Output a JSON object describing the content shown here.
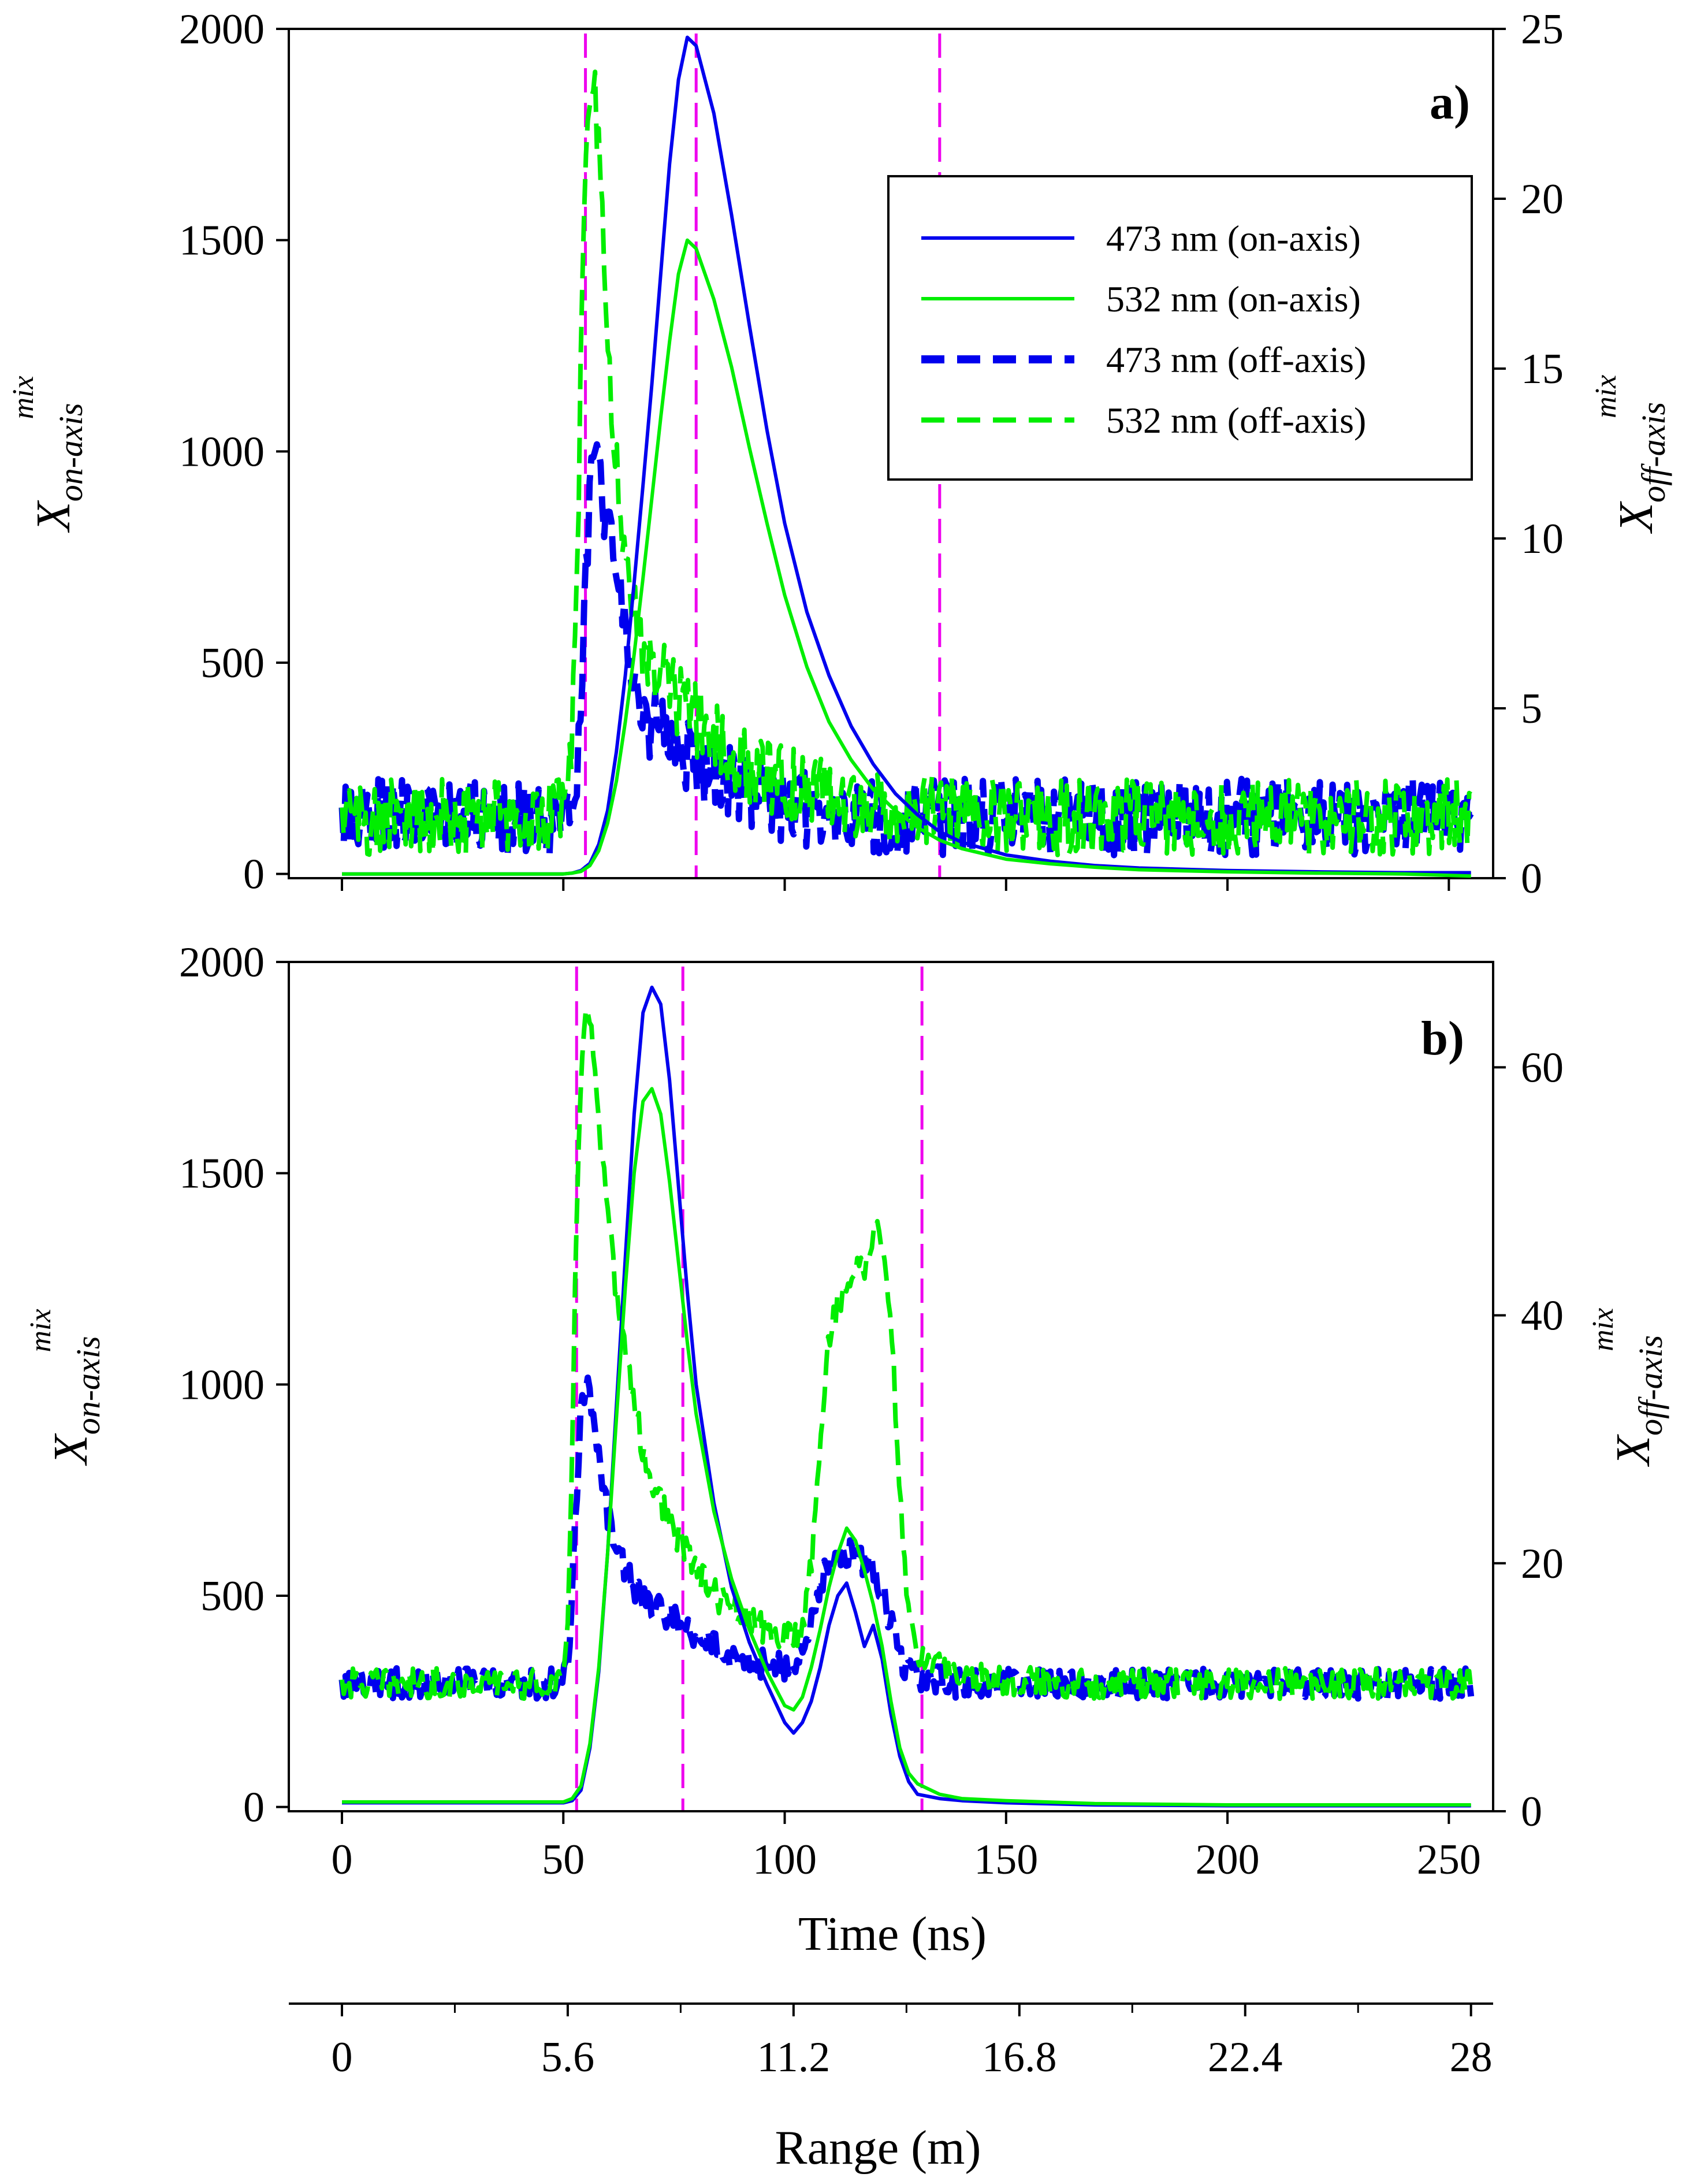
{
  "chart_data": [
    {
      "panel": "a)",
      "type": "line",
      "ylabel_left": {
        "base": "X",
        "sub": "on-axis",
        "sup": "mix"
      },
      "ylabel_right": {
        "base": "X",
        "sub": "off-axis",
        "sup": "mix"
      },
      "xlim": [
        -12,
        260
      ],
      "ylim_left": [
        -10,
        2000
      ],
      "ylim_right": [
        0,
        25
      ],
      "left_ticks": [
        "0",
        "500",
        "1000",
        "1500",
        "2000"
      ],
      "right_ticks": [
        "0",
        "5",
        "10",
        "15",
        "20",
        "25"
      ],
      "vlines": [
        55,
        80,
        135
      ],
      "legend": {
        "placement": "top-right",
        "entries": [
          "473 nm (on-axis)",
          "532 nm (on-axis)",
          "473 nm (off-axis)",
          "532 nm (off-axis)"
        ]
      },
      "series": [
        {
          "name": "473 nm (on-axis)",
          "axis": "left",
          "color": "#0000ee",
          "style": "solid",
          "x": [
            0,
            50,
            52,
            54,
            56,
            58,
            60,
            62,
            64,
            66,
            68,
            70,
            72,
            74,
            76,
            78,
            80,
            84,
            88,
            92,
            96,
            100,
            105,
            110,
            115,
            120,
            125,
            130,
            135,
            140,
            150,
            160,
            170,
            180,
            200,
            220,
            240,
            255
          ],
          "y": [
            0,
            0,
            2,
            8,
            25,
            70,
            150,
            290,
            470,
            690,
            920,
            1160,
            1420,
            1680,
            1880,
            1980,
            1960,
            1800,
            1560,
            1300,
            1050,
            830,
            620,
            470,
            350,
            260,
            190,
            140,
            100,
            75,
            45,
            30,
            20,
            14,
            8,
            5,
            3,
            3
          ]
        },
        {
          "name": "532 nm (on-axis)",
          "axis": "left",
          "color": "#00ee00",
          "style": "solid",
          "x": [
            0,
            50,
            52,
            54,
            56,
            58,
            60,
            62,
            64,
            66,
            68,
            70,
            72,
            74,
            76,
            78,
            80,
            84,
            88,
            92,
            96,
            100,
            105,
            110,
            115,
            120,
            125,
            130,
            135,
            140,
            150,
            160,
            170,
            180,
            200,
            220,
            240,
            255
          ],
          "y": [
            0,
            0,
            2,
            6,
            20,
            55,
            120,
            220,
            360,
            520,
            700,
            890,
            1080,
            1260,
            1420,
            1500,
            1480,
            1360,
            1200,
            1010,
            830,
            660,
            490,
            360,
            270,
            200,
            150,
            110,
            80,
            60,
            35,
            24,
            16,
            10,
            5,
            2,
            0,
            -5
          ]
        },
        {
          "name": "473 nm (off-axis)",
          "axis": "right",
          "color": "#0000ee",
          "style": "dashed",
          "x": [
            0,
            50,
            52,
            54,
            55,
            56,
            57,
            58,
            60,
            62,
            64,
            66,
            68,
            70,
            75,
            80,
            85,
            90,
            95,
            100,
            105,
            110,
            115,
            120,
            130,
            140,
            150,
            160,
            170,
            180,
            200,
            220,
            240,
            255
          ],
          "y": [
            1.8,
            1.8,
            2.2,
            4.5,
            8.5,
            11.0,
            12.2,
            12.0,
            10.5,
            8.8,
            7.0,
            6.0,
            5.2,
            4.5,
            4.0,
            3.4,
            3.1,
            2.8,
            2.4,
            2.1,
            2.0,
            1.9,
            1.9,
            1.8,
            1.8,
            1.8,
            1.8,
            1.8,
            1.8,
            1.8,
            1.8,
            1.8,
            1.8,
            1.8
          ]
        },
        {
          "name": "532 nm (off-axis)",
          "axis": "right",
          "color": "#00ee00",
          "style": "dashed",
          "x": [
            0,
            50,
            52,
            53,
            54,
            55,
            56,
            57,
            58,
            59,
            60,
            62,
            64,
            66,
            68,
            70,
            75,
            80,
            85,
            90,
            95,
            100,
            105,
            110,
            115,
            120,
            130,
            140,
            150,
            160,
            170,
            180,
            200,
            220,
            240,
            255
          ],
          "y": [
            1.8,
            1.8,
            4.0,
            9.0,
            15.0,
            20.0,
            23.0,
            23.2,
            21.5,
            19.0,
            16.0,
            12.0,
            9.5,
            8.0,
            7.0,
            6.3,
            5.4,
            4.6,
            4.0,
            3.5,
            3.1,
            2.8,
            2.6,
            2.4,
            2.3,
            2.2,
            2.0,
            1.9,
            1.8,
            1.8,
            1.8,
            1.8,
            1.8,
            1.8,
            1.8,
            1.8
          ]
        }
      ]
    },
    {
      "panel": "b)",
      "type": "line",
      "ylabel_left": {
        "base": "X",
        "sub": "on-axis",
        "sup": "mix"
      },
      "ylabel_right": {
        "base": "X",
        "sub": "off-axis",
        "sup": "mix"
      },
      "xlabel": "Time (ns)",
      "xlim": [
        -12,
        260
      ],
      "ylim_left": [
        -10,
        2000
      ],
      "ylim_right": [
        0,
        68.5
      ],
      "x_ticks": [
        "0",
        "50",
        "100",
        "150",
        "200",
        "250"
      ],
      "left_ticks": [
        "0",
        "500",
        "1000",
        "1500",
        "2000"
      ],
      "right_ticks": [
        "0",
        "20",
        "40",
        "60"
      ],
      "vlines": [
        53,
        77,
        131
      ],
      "secondary_x_axis": {
        "label": "Range (m)",
        "ticks": [
          "0",
          "5.6",
          "11.2",
          "16.8",
          "22.4",
          "28"
        ],
        "max": 28
      },
      "series": [
        {
          "name": "473 nm (on-axis)",
          "axis": "left",
          "color": "#0000ee",
          "style": "solid",
          "x": [
            0,
            50,
            52,
            54,
            56,
            58,
            60,
            62,
            64,
            66,
            68,
            70,
            72,
            74,
            76,
            78,
            80,
            84,
            88,
            92,
            96,
            100,
            102,
            104,
            106,
            108,
            110,
            112,
            114,
            116,
            118,
            120,
            122,
            124,
            126,
            128,
            130,
            135,
            140,
            150,
            170,
            200,
            255
          ],
          "y": [
            10,
            10,
            15,
            40,
            140,
            320,
            600,
            950,
            1300,
            1640,
            1880,
            1940,
            1900,
            1720,
            1470,
            1220,
            1000,
            720,
            520,
            390,
            290,
            200,
            175,
            200,
            250,
            330,
            430,
            500,
            530,
            460,
            380,
            430,
            350,
            220,
            120,
            60,
            30,
            20,
            15,
            10,
            5,
            3,
            3
          ]
        },
        {
          "name": "532 nm (on-axis)",
          "axis": "left",
          "color": "#00ee00",
          "style": "solid",
          "x": [
            0,
            50,
            52,
            54,
            56,
            58,
            60,
            62,
            64,
            66,
            68,
            70,
            72,
            74,
            76,
            78,
            80,
            84,
            88,
            92,
            96,
            100,
            102,
            104,
            106,
            108,
            110,
            112,
            114,
            116,
            118,
            120,
            122,
            124,
            126,
            128,
            130,
            135,
            140,
            150,
            170,
            200,
            255
          ],
          "y": [
            12,
            12,
            20,
            50,
            150,
            330,
            600,
            920,
            1230,
            1500,
            1670,
            1700,
            1640,
            1480,
            1290,
            1100,
            930,
            700,
            540,
            420,
            320,
            240,
            230,
            260,
            330,
            420,
            520,
            600,
            660,
            630,
            560,
            480,
            380,
            250,
            140,
            80,
            55,
            30,
            20,
            15,
            8,
            5,
            5
          ]
        },
        {
          "name": "473 nm (off-axis)",
          "axis": "right",
          "color": "#0000ee",
          "style": "dashed",
          "x": [
            0,
            50,
            51,
            52,
            53,
            54,
            55,
            56,
            57,
            58,
            59,
            60,
            62,
            64,
            66,
            68,
            70,
            75,
            80,
            85,
            90,
            95,
            100,
            102,
            104,
            106,
            108,
            110,
            112,
            114,
            116,
            118,
            120,
            122,
            124,
            126,
            128,
            130,
            132,
            135,
            140,
            150,
            170,
            200,
            255
          ],
          "y": [
            10.3,
            10.3,
            12.0,
            18.0,
            26.0,
            32.0,
            34.0,
            33.5,
            31.0,
            28.5,
            26.0,
            24.0,
            21.5,
            19.5,
            18.2,
            17.2,
            16.5,
            15.5,
            14.2,
            13.2,
            12.3,
            11.8,
            11.5,
            11.8,
            12.8,
            15.5,
            18.5,
            20.0,
            20.8,
            21.0,
            20.5,
            20.0,
            19.5,
            18.0,
            15.0,
            12.5,
            11.5,
            11.0,
            10.8,
            10.5,
            10.3,
            10.3,
            10.3,
            10.3,
            10.3
          ]
        },
        {
          "name": "532 nm (off-axis)",
          "axis": "right",
          "color": "#00ee00",
          "style": "dashed",
          "x": [
            0,
            50,
            51,
            52,
            53,
            54,
            55,
            56,
            57,
            58,
            60,
            62,
            64,
            66,
            68,
            70,
            75,
            80,
            85,
            90,
            95,
            100,
            102,
            104,
            106,
            108,
            110,
            112,
            114,
            116,
            118,
            120,
            122,
            124,
            126,
            128,
            130,
            132,
            135,
            140,
            150,
            170,
            200,
            255
          ],
          "y": [
            10.3,
            10.3,
            14.0,
            30.0,
            48.0,
            60.0,
            64.5,
            64.0,
            60.0,
            55.0,
            48.0,
            42.0,
            37.0,
            33.0,
            29.0,
            26.5,
            22.5,
            19.5,
            17.2,
            15.8,
            14.8,
            14.0,
            14.0,
            15.0,
            20.0,
            30.0,
            38.0,
            41.0,
            42.5,
            43.5,
            44.0,
            46.5,
            46.5,
            40.0,
            25.0,
            16.0,
            13.0,
            12.0,
            11.5,
            11.0,
            10.5,
            10.3,
            10.3,
            10.3
          ]
        }
      ]
    }
  ]
}
